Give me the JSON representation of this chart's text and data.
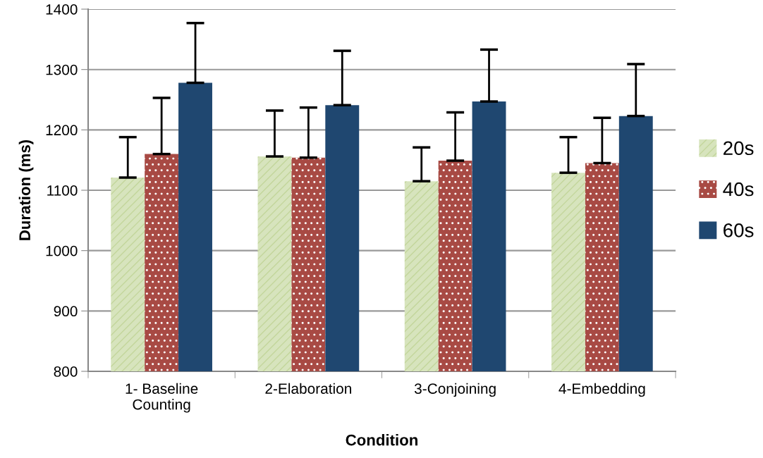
{
  "chart_data": {
    "type": "bar",
    "xlabel": "Condition",
    "ylabel": "Duration (ms)",
    "categories": [
      "1- Baseline\nCounting",
      "2-Elaboration",
      "3-Conjoining",
      "4-Embedding"
    ],
    "series": [
      {
        "name": "20s",
        "color": "#d7e4bd",
        "values": [
          1121,
          1156,
          1115,
          1129
        ],
        "errors": [
          [
            1121,
            1188
          ],
          [
            1156,
            1232
          ],
          [
            1115,
            1171
          ],
          [
            1129,
            1188
          ]
        ]
      },
      {
        "name": "40s",
        "color": "#a84a44",
        "values": [
          1160,
          1154,
          1149,
          1145
        ],
        "errors": [
          [
            1160,
            1253
          ],
          [
            1154,
            1237
          ],
          [
            1149,
            1229
          ],
          [
            1145,
            1220
          ]
        ]
      },
      {
        "name": "60s",
        "color": "#1f4770",
        "values": [
          1278,
          1241,
          1247,
          1223
        ],
        "errors": [
          [
            1278,
            1377
          ],
          [
            1241,
            1331
          ],
          [
            1247,
            1333
          ],
          [
            1223,
            1309
          ]
        ]
      }
    ],
    "ylim": [
      800,
      1400
    ],
    "yticks": [
      800,
      900,
      1000,
      1100,
      1200,
      1300,
      1400
    ],
    "grid": "y",
    "legend": "right"
  }
}
